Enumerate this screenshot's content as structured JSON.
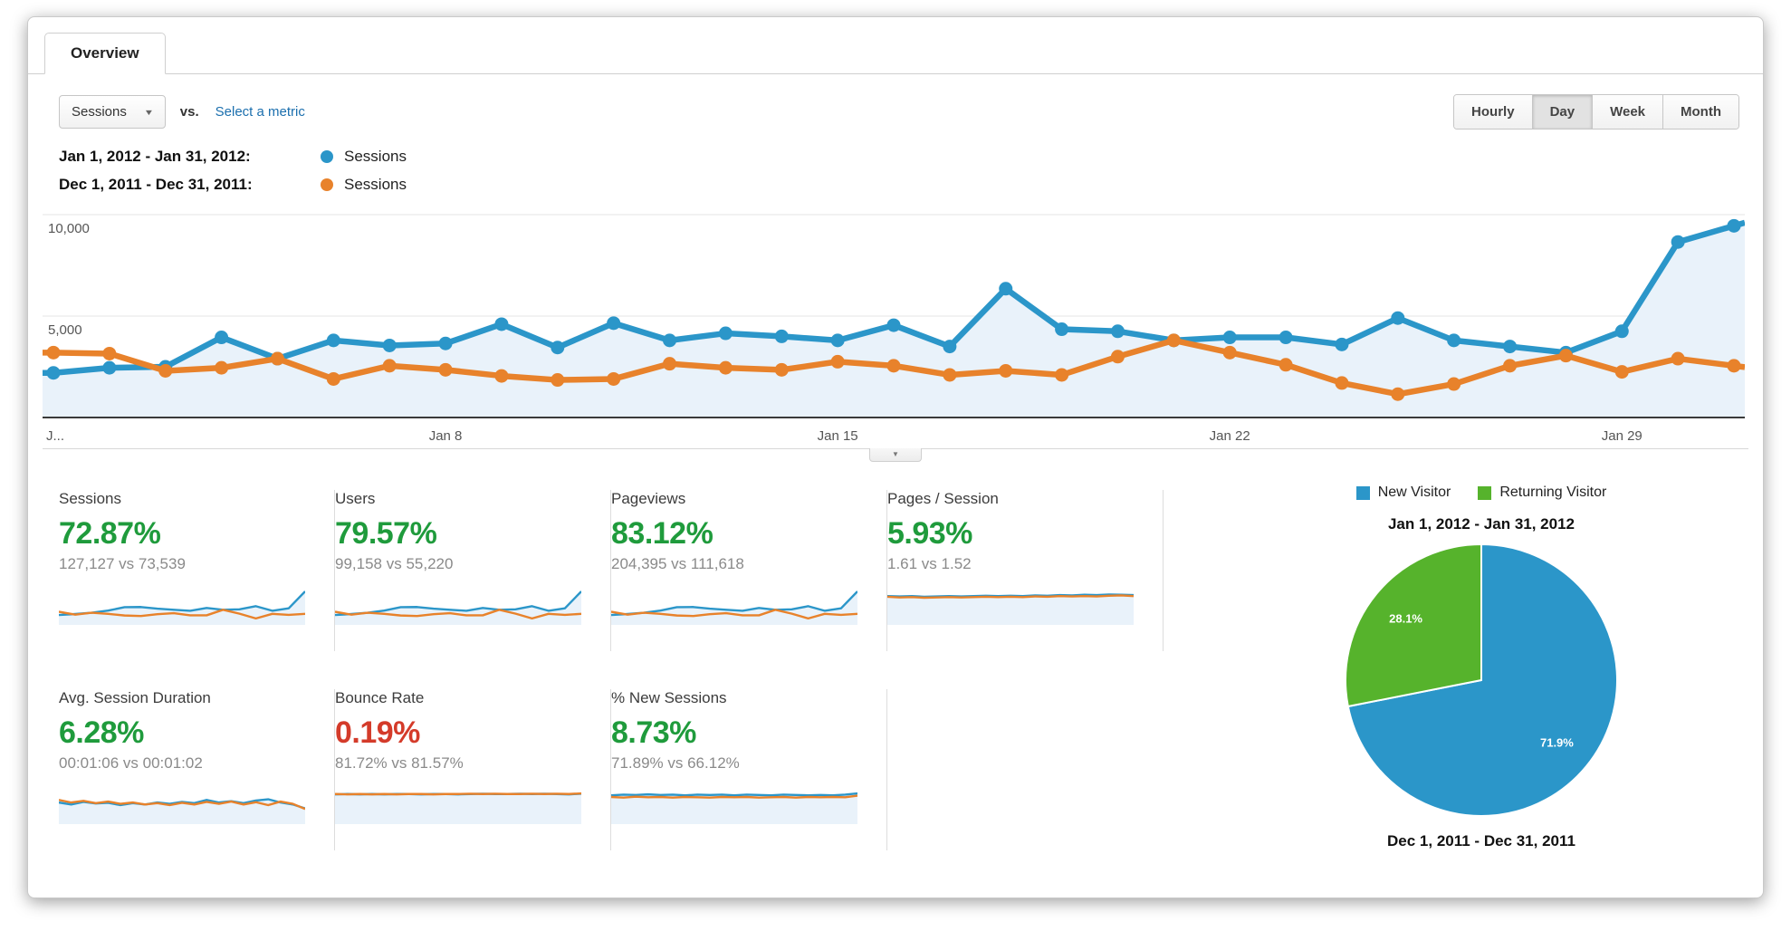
{
  "tab": {
    "label": "Overview"
  },
  "controls": {
    "metric_select": "Sessions",
    "vs_label": "vs.",
    "select_metric_link": "Select a metric",
    "granularity": [
      "Hourly",
      "Day",
      "Week",
      "Month"
    ],
    "granularity_active": "Day"
  },
  "icons": {
    "dropdown_arrow": "▼",
    "expander_arrow": "▼"
  },
  "colors": {
    "blue": "#2b96c9",
    "orange": "#e8822b",
    "pie_green": "#56b32c",
    "area_fill": "#e9f2fa",
    "positive": "#1f9b3c",
    "negative": "#d43b2a"
  },
  "series_legend": [
    {
      "range": "Jan 1, 2012 - Jan 31, 2012:",
      "metric": "Sessions",
      "color": "#2b96c9"
    },
    {
      "range": "Dec 1, 2011 - Dec 31, 2011:",
      "metric": "Sessions",
      "color": "#e8822b"
    }
  ],
  "chart_data": [
    {
      "type": "line",
      "title": "Sessions by day, Jan 1 2012 - Jan 31 2012 vs Dec 1 2011 - Dec 31 2011",
      "grid": "horizontal",
      "ylim": [
        0,
        10000
      ],
      "y_ticks": [
        {
          "value": 10000,
          "label": "10,000"
        },
        {
          "value": 5000,
          "label": "5,000"
        }
      ],
      "x_ticks": [
        {
          "day": 1,
          "label": "J...",
          "align": "start"
        },
        {
          "day": 8,
          "label": "Jan 8"
        },
        {
          "day": 15,
          "label": "Jan 15"
        },
        {
          "day": 22,
          "label": "Jan 22"
        },
        {
          "day": 29,
          "label": "Jan 29"
        }
      ],
      "series": [
        {
          "name": "Sessions (Jan 1, 2012 - Jan 31, 2012)",
          "color": "#2b96c9",
          "area": true,
          "values": [
            2200,
            2450,
            2500,
            3950,
            2900,
            3800,
            3550,
            3650,
            4600,
            3450,
            4650,
            3800,
            4150,
            4000,
            3800,
            4550,
            3500,
            6350,
            4350,
            4250,
            3800,
            3950,
            3950,
            3600,
            4900,
            3800,
            3500,
            3200,
            4250,
            8650,
            9450
          ]
        },
        {
          "name": "Sessions (Dec 1, 2011 - Dec 31, 2011)",
          "color": "#e8822b",
          "area": false,
          "values": [
            3200,
            3150,
            2300,
            2450,
            2900,
            1900,
            2550,
            2350,
            2050,
            1850,
            1900,
            2650,
            2450,
            2350,
            2750,
            2550,
            2100,
            2300,
            2100,
            3000,
            3800,
            3200,
            2600,
            1700,
            1150,
            1650,
            2550,
            3050,
            2250,
            2900,
            2550
          ]
        }
      ]
    },
    {
      "type": "pie",
      "title_top": "Jan 1, 2012 - Jan 31, 2012",
      "title_bottom": "Dec 1, 2011 - Dec 31, 2011",
      "legend": [
        {
          "label": "New Visitor",
          "color": "#2b96c9"
        },
        {
          "label": "Returning Visitor",
          "color": "#56b32c"
        }
      ],
      "slices": [
        {
          "label": "New Visitor",
          "value": 71.9,
          "display": "71.9%",
          "color": "#2b96c9"
        },
        {
          "label": "Returning Visitor",
          "value": 28.1,
          "display": "28.1%",
          "color": "#56b32c"
        }
      ]
    }
  ],
  "cards": [
    {
      "title": "Sessions",
      "value": "72.87%",
      "direction": "positive",
      "sub": "127,127 vs 73,539",
      "spark_source": "main"
    },
    {
      "title": "Users",
      "value": "79.57%",
      "direction": "positive",
      "sub": "99,158 vs 55,220",
      "spark_source": "main"
    },
    {
      "title": "Pageviews",
      "value": "83.12%",
      "direction": "positive",
      "sub": "204,395 vs 111,618",
      "spark_source": "main"
    },
    {
      "title": "Pages / Session",
      "value": "5.93%",
      "direction": "positive",
      "sub": "1.61 vs 1.52",
      "spark": {
        "blue": [
          0.8,
          0.79,
          0.8,
          0.78,
          0.79,
          0.8,
          0.79,
          0.8,
          0.81,
          0.8,
          0.81,
          0.8,
          0.82,
          0.81,
          0.83,
          0.82,
          0.84,
          0.83,
          0.85,
          0.84,
          0.83
        ],
        "orange": [
          0.78,
          0.76,
          0.77,
          0.75,
          0.76,
          0.77,
          0.76,
          0.77,
          0.78,
          0.77,
          0.78,
          0.77,
          0.79,
          0.78,
          0.8,
          0.79,
          0.8,
          0.79,
          0.81,
          0.82,
          0.8
        ]
      }
    },
    {
      "title": "Avg. Session Duration",
      "value": "6.28%",
      "direction": "positive",
      "sub": "00:01:06 vs 00:01:02",
      "spark": {
        "blue": [
          0.58,
          0.52,
          0.6,
          0.55,
          0.57,
          0.5,
          0.56,
          0.52,
          0.58,
          0.54,
          0.6,
          0.56,
          0.66,
          0.58,
          0.62,
          0.56,
          0.64,
          0.68,
          0.58,
          0.52,
          0.4
        ],
        "orange": [
          0.66,
          0.58,
          0.63,
          0.56,
          0.61,
          0.54,
          0.58,
          0.52,
          0.56,
          0.5,
          0.57,
          0.52,
          0.6,
          0.54,
          0.61,
          0.52,
          0.59,
          0.5,
          0.61,
          0.54,
          0.38
        ]
      }
    },
    {
      "title": "Bounce Rate",
      "value": "0.19%",
      "direction": "negative",
      "sub": "81.72% vs 81.57%",
      "spark": {
        "blue": [
          0.83,
          0.84,
          0.83,
          0.84,
          0.83,
          0.84,
          0.84,
          0.83,
          0.84,
          0.84,
          0.83,
          0.84,
          0.85,
          0.84,
          0.84,
          0.85,
          0.84,
          0.85,
          0.84,
          0.83,
          0.85
        ],
        "orange": [
          0.84,
          0.83,
          0.84,
          0.83,
          0.84,
          0.83,
          0.84,
          0.84,
          0.83,
          0.84,
          0.84,
          0.85,
          0.84,
          0.85,
          0.84,
          0.84,
          0.85,
          0.84,
          0.85,
          0.84,
          0.86
        ]
      }
    },
    {
      "title": "% New Sessions",
      "value": "8.73%",
      "direction": "positive",
      "sub": "71.89% vs 66.12%",
      "spark": {
        "blue": [
          0.8,
          0.82,
          0.81,
          0.83,
          0.81,
          0.82,
          0.8,
          0.82,
          0.81,
          0.82,
          0.8,
          0.82,
          0.81,
          0.8,
          0.82,
          0.81,
          0.8,
          0.81,
          0.8,
          0.82,
          0.86
        ],
        "orange": [
          0.75,
          0.73,
          0.76,
          0.74,
          0.75,
          0.73,
          0.75,
          0.74,
          0.73,
          0.75,
          0.74,
          0.75,
          0.73,
          0.74,
          0.75,
          0.73,
          0.75,
          0.74,
          0.75,
          0.74,
          0.79
        ]
      }
    }
  ]
}
